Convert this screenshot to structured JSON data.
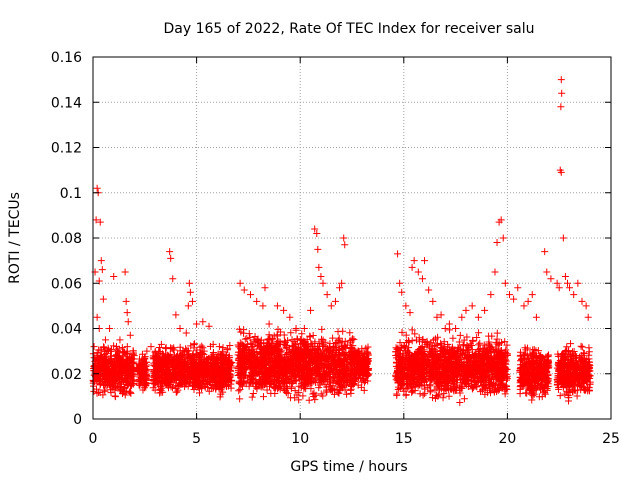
{
  "chart_data": {
    "type": "scatter",
    "title": "Day 165 of 2022, Rate Of TEC Index for receiver salu",
    "xlabel": "GPS time / hours",
    "ylabel": "ROTI / TECUs",
    "xlim": [
      0,
      25
    ],
    "ylim": [
      0,
      0.16
    ],
    "xticks": [
      0,
      5,
      10,
      15,
      20,
      25
    ],
    "yticks": [
      0,
      0.02,
      0.04,
      0.06,
      0.08,
      0.1,
      0.12,
      0.14,
      0.16
    ],
    "xtick_labels": [
      "0",
      "5",
      "10",
      "15",
      "20",
      "25"
    ],
    "ytick_labels": [
      "0",
      "0.02",
      "0.04",
      "0.06",
      "0.08",
      "0.1",
      "0.12",
      "0.14",
      "0.16"
    ],
    "grid": true,
    "marker": "+",
    "color": "#ff0000",
    "series": [
      {
        "name": "ROTI",
        "points": [
          [
            0.1,
            0.065
          ],
          [
            0.2,
            0.102
          ],
          [
            0.25,
            0.1
          ],
          [
            0.15,
            0.088
          ],
          [
            0.35,
            0.087
          ],
          [
            0.4,
            0.07
          ],
          [
            0.45,
            0.066
          ],
          [
            0.3,
            0.061
          ],
          [
            0.5,
            0.053
          ],
          [
            0.2,
            0.045
          ],
          [
            0.3,
            0.04
          ],
          [
            0.05,
            0.032
          ],
          [
            0.6,
            0.035
          ],
          [
            0.8,
            0.04
          ],
          [
            1.0,
            0.063
          ],
          [
            1.1,
            0.03
          ],
          [
            1.3,
            0.035
          ],
          [
            1.55,
            0.065
          ],
          [
            1.6,
            0.052
          ],
          [
            1.65,
            0.047
          ],
          [
            1.7,
            0.043
          ],
          [
            1.8,
            0.037
          ],
          [
            2.4,
            0.025
          ],
          [
            2.6,
            0.03
          ],
          [
            2.8,
            0.032
          ],
          [
            3.3,
            0.033
          ],
          [
            3.7,
            0.074
          ],
          [
            3.75,
            0.071
          ],
          [
            3.85,
            0.062
          ],
          [
            4.0,
            0.046
          ],
          [
            4.2,
            0.04
          ],
          [
            4.5,
            0.038
          ],
          [
            4.6,
            0.05
          ],
          [
            4.65,
            0.06
          ],
          [
            4.7,
            0.056
          ],
          [
            4.8,
            0.052
          ],
          [
            5.0,
            0.042
          ],
          [
            5.3,
            0.043
          ],
          [
            5.6,
            0.041
          ],
          [
            5.8,
            0.033
          ],
          [
            6.1,
            0.032
          ],
          [
            6.5,
            0.031
          ],
          [
            7.1,
            0.06
          ],
          [
            7.3,
            0.057
          ],
          [
            7.6,
            0.055
          ],
          [
            7.9,
            0.052
          ],
          [
            8.2,
            0.05
          ],
          [
            8.3,
            0.058
          ],
          [
            8.5,
            0.042
          ],
          [
            8.9,
            0.05
          ],
          [
            9.2,
            0.048
          ],
          [
            9.5,
            0.045
          ],
          [
            9.8,
            0.04
          ],
          [
            10.2,
            0.04
          ],
          [
            10.5,
            0.048
          ],
          [
            10.7,
            0.084
          ],
          [
            10.8,
            0.082
          ],
          [
            10.85,
            0.075
          ],
          [
            10.9,
            0.067
          ],
          [
            11.0,
            0.063
          ],
          [
            11.1,
            0.06
          ],
          [
            11.3,
            0.055
          ],
          [
            11.5,
            0.05
          ],
          [
            11.7,
            0.052
          ],
          [
            11.9,
            0.058
          ],
          [
            12.0,
            0.06
          ],
          [
            12.1,
            0.08
          ],
          [
            12.15,
            0.077
          ],
          [
            12.5,
            0.035
          ],
          [
            12.8,
            0.03
          ],
          [
            13.2,
            0.025
          ],
          [
            14.7,
            0.073
          ],
          [
            14.8,
            0.06
          ],
          [
            14.9,
            0.056
          ],
          [
            15.1,
            0.05
          ],
          [
            15.3,
            0.047
          ],
          [
            15.4,
            0.067
          ],
          [
            15.5,
            0.07
          ],
          [
            15.7,
            0.065
          ],
          [
            15.9,
            0.062
          ],
          [
            16.0,
            0.07
          ],
          [
            16.2,
            0.057
          ],
          [
            16.4,
            0.052
          ],
          [
            16.6,
            0.045
          ],
          [
            16.8,
            0.046
          ],
          [
            17.0,
            0.04
          ],
          [
            17.2,
            0.042
          ],
          [
            17.5,
            0.04
          ],
          [
            17.8,
            0.045
          ],
          [
            18.0,
            0.048
          ],
          [
            18.3,
            0.05
          ],
          [
            18.6,
            0.045
          ],
          [
            18.9,
            0.048
          ],
          [
            19.2,
            0.055
          ],
          [
            19.4,
            0.065
          ],
          [
            19.5,
            0.078
          ],
          [
            19.6,
            0.087
          ],
          [
            19.7,
            0.088
          ],
          [
            19.8,
            0.08
          ],
          [
            19.9,
            0.06
          ],
          [
            20.1,
            0.055
          ],
          [
            20.3,
            0.053
          ],
          [
            20.5,
            0.058
          ],
          [
            20.8,
            0.05
          ],
          [
            21.0,
            0.052
          ],
          [
            21.2,
            0.055
          ],
          [
            21.4,
            0.045
          ],
          [
            21.8,
            0.074
          ],
          [
            21.9,
            0.065
          ],
          [
            22.1,
            0.062
          ],
          [
            22.4,
            0.06
          ],
          [
            22.5,
            0.058
          ],
          [
            22.6,
            0.15
          ],
          [
            22.62,
            0.144
          ],
          [
            22.58,
            0.138
          ],
          [
            22.55,
            0.11
          ],
          [
            22.6,
            0.109
          ],
          [
            22.7,
            0.08
          ],
          [
            22.8,
            0.063
          ],
          [
            22.9,
            0.06
          ],
          [
            23.0,
            0.058
          ],
          [
            23.2,
            0.055
          ],
          [
            23.4,
            0.06
          ],
          [
            23.6,
            0.052
          ],
          [
            23.8,
            0.05
          ],
          [
            23.9,
            0.045
          ]
        ]
      }
    ],
    "dense_bands": [
      {
        "x": [
          0.0,
          2.0
        ],
        "ylow": 0.008,
        "yhigh": 0.035
      },
      {
        "x": [
          2.2,
          2.6
        ],
        "ylow": 0.01,
        "yhigh": 0.03
      },
      {
        "x": [
          2.9,
          6.7
        ],
        "ylow": 0.008,
        "yhigh": 0.035
      },
      {
        "x": [
          7.0,
          12.6
        ],
        "ylow": 0.006,
        "yhigh": 0.042
      },
      {
        "x": [
          12.6,
          13.3
        ],
        "ylow": 0.012,
        "yhigh": 0.034
      },
      {
        "x": [
          14.6,
          20.0
        ],
        "ylow": 0.006,
        "yhigh": 0.04
      },
      {
        "x": [
          20.6,
          22.0
        ],
        "ylow": 0.007,
        "yhigh": 0.034
      },
      {
        "x": [
          22.4,
          24.0
        ],
        "ylow": 0.007,
        "yhigh": 0.035
      }
    ]
  }
}
